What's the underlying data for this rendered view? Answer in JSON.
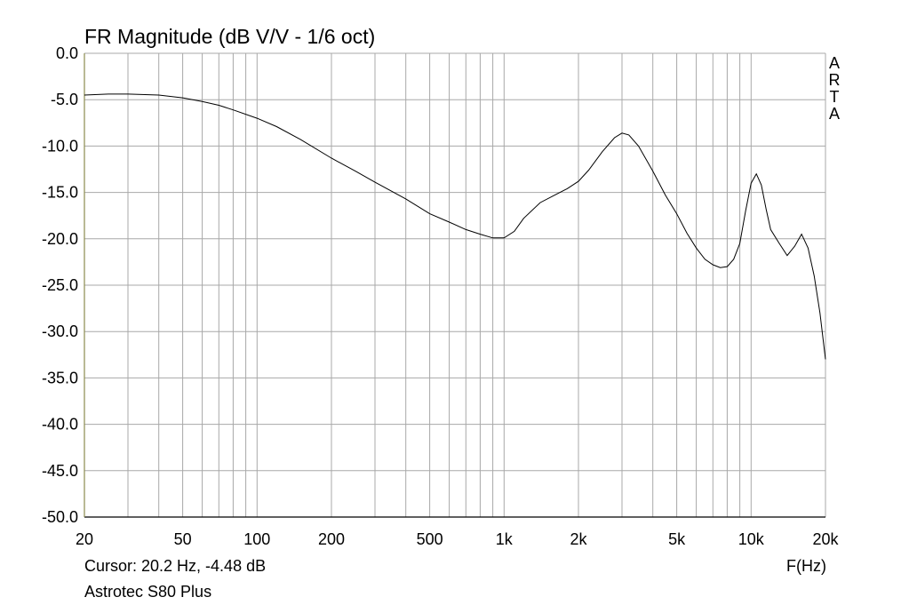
{
  "chart_data": {
    "type": "line",
    "title": "FR Magnitude (dB V/V - 1/6 oct)",
    "xlabel": "F(Hz)",
    "ylabel": "",
    "x_scale": "log",
    "xlim": [
      20,
      20000
    ],
    "ylim": [
      -50,
      0
    ],
    "grid": true,
    "x_ticks": [
      20,
      50,
      100,
      200,
      500,
      1000,
      2000,
      5000,
      10000,
      20000
    ],
    "x_tick_labels": [
      "20",
      "50",
      "100",
      "200",
      "500",
      "1k",
      "2k",
      "5k",
      "10k",
      "20k"
    ],
    "y_ticks": [
      0,
      -5,
      -10,
      -15,
      -20,
      -25,
      -30,
      -35,
      -40,
      -45,
      -50
    ],
    "y_tick_labels": [
      "0.0",
      "-5.0",
      "-10.0",
      "-15.0",
      "-20.0",
      "-25.0",
      "-30.0",
      "-35.0",
      "-40.0",
      "-45.0",
      "-50.0"
    ],
    "series": [
      {
        "x": [
          20,
          25,
          30,
          40,
          50,
          60,
          70,
          80,
          100,
          120,
          150,
          200,
          250,
          300,
          400,
          500,
          600,
          700,
          800,
          900,
          1000,
          1100,
          1200,
          1400,
          1600,
          1800,
          2000,
          2200,
          2500,
          2800,
          3000,
          3200,
          3500,
          4000,
          4500,
          5000,
          5500,
          6000,
          6500,
          7000,
          7500,
          8000,
          8500,
          9000,
          9500,
          10000,
          10500,
          11000,
          11500,
          12000,
          13000,
          14000,
          15000,
          16000,
          17000,
          18000,
          19000,
          20000
        ],
        "y": [
          -4.5,
          -4.4,
          -4.4,
          -4.5,
          -4.8,
          -5.2,
          -5.6,
          -6.1,
          -7.0,
          -7.9,
          -9.3,
          -11.3,
          -12.7,
          -13.9,
          -15.7,
          -17.3,
          -18.2,
          -19.0,
          -19.5,
          -19.9,
          -19.9,
          -19.2,
          -17.8,
          -16.1,
          -15.3,
          -14.6,
          -13.8,
          -12.6,
          -10.6,
          -9.1,
          -8.6,
          -8.8,
          -10.0,
          -12.7,
          -15.3,
          -17.3,
          -19.4,
          -21.0,
          -22.2,
          -22.8,
          -23.1,
          -23.0,
          -22.2,
          -20.5,
          -17.0,
          -14.0,
          -13.0,
          -14.2,
          -16.8,
          -19.0,
          -20.5,
          -21.8,
          -20.8,
          -19.5,
          -21.0,
          -24.0,
          -28.0,
          -33.0
        ]
      }
    ],
    "line_color": "#000000",
    "grid_color": "#a8a8a8",
    "axis_color": "#8c8c4f"
  },
  "side_label": "ARTA",
  "cursor_readout": "Cursor: 20.2 Hz, -4.48 dB",
  "device_name": "Astrotec S80 Plus"
}
